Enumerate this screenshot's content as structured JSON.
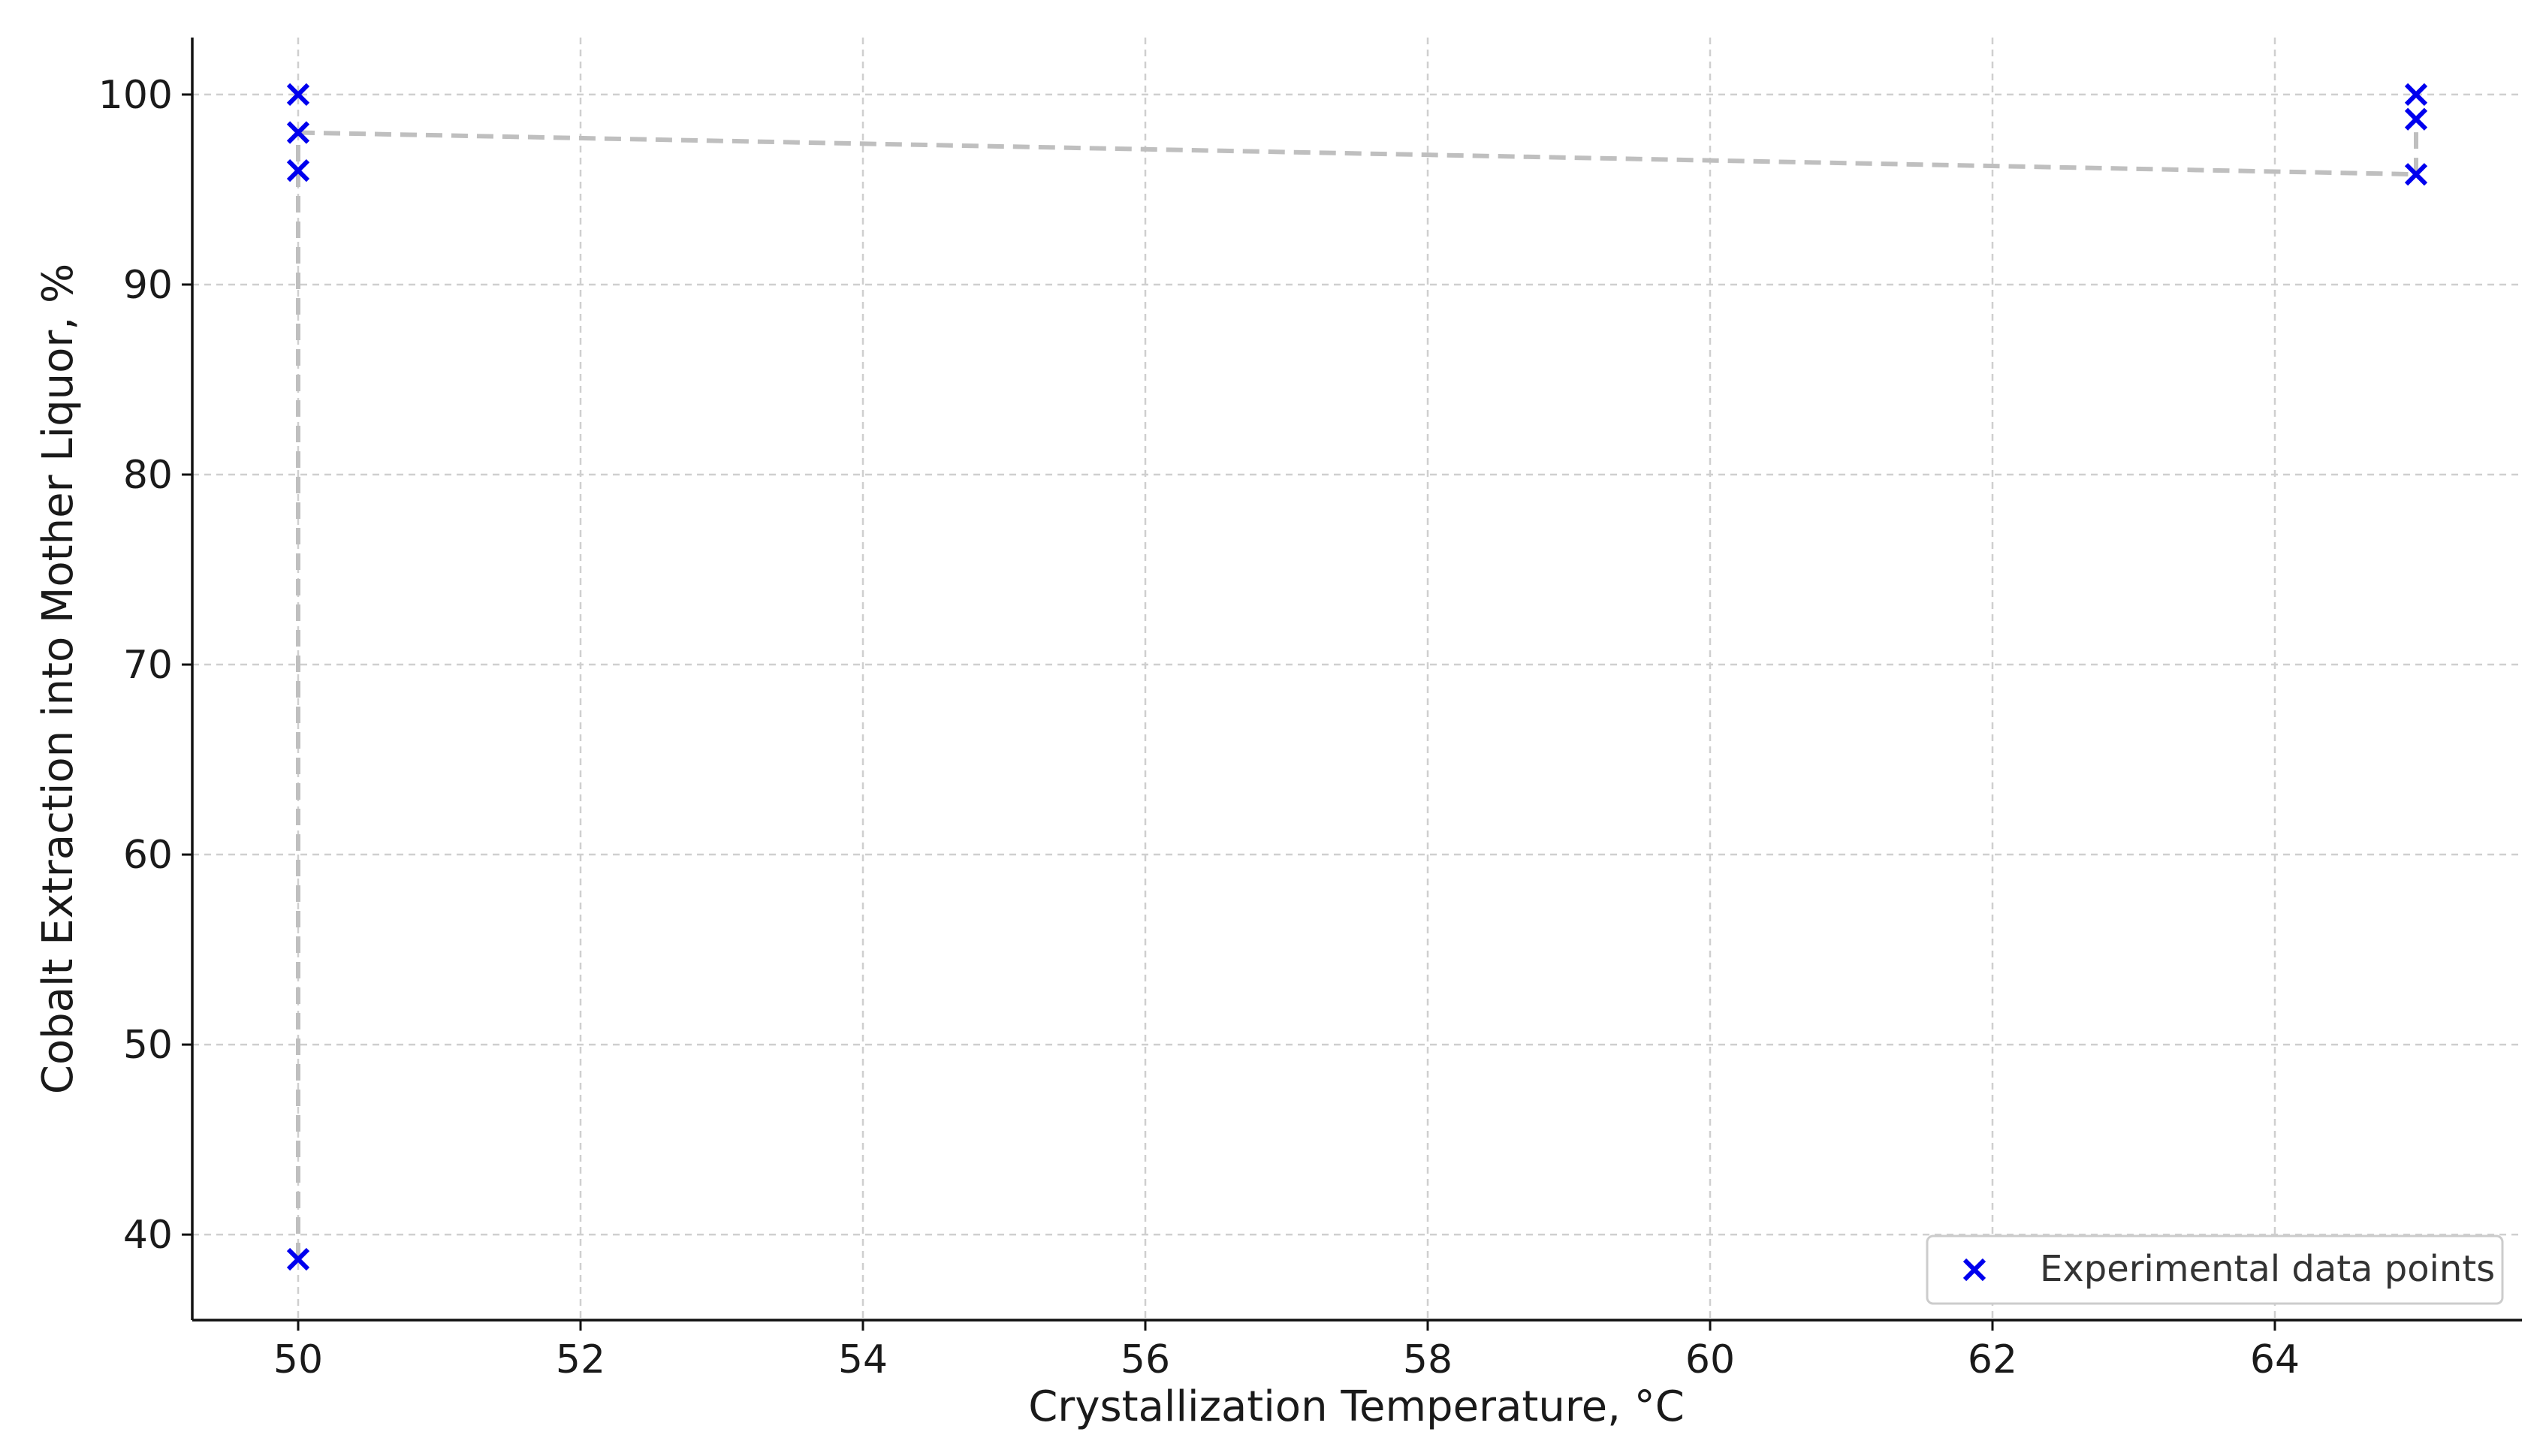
{
  "chart_data": {
    "type": "scatter",
    "title": "",
    "xlabel": "Crystallization Temperature, °C",
    "ylabel": "Cobalt Extraction into Mother Liquor, %",
    "xlim": [
      49.25,
      65.75
    ],
    "ylim": [
      35.5,
      103
    ],
    "x_ticks": [
      50,
      52,
      54,
      56,
      58,
      60,
      62,
      64
    ],
    "y_ticks": [
      40,
      50,
      60,
      70,
      80,
      90,
      100
    ],
    "grid": true,
    "legend_position": "lower-right",
    "series": [
      {
        "name": "Experimental data points",
        "marker": "x",
        "color": "#0000ee",
        "points": [
          {
            "x": 50,
            "y": 100
          },
          {
            "x": 50,
            "y": 98
          },
          {
            "x": 50,
            "y": 96
          },
          {
            "x": 50,
            "y": 38.7
          },
          {
            "x": 65,
            "y": 100
          },
          {
            "x": 65,
            "y": 98.7
          },
          {
            "x": 65,
            "y": 95.8
          }
        ]
      }
    ],
    "connector_lines": [
      {
        "style": "dashed",
        "color": "#bfbfbf",
        "points": [
          {
            "x": 50,
            "y": 38.7
          },
          {
            "x": 50,
            "y": 98
          }
        ]
      },
      {
        "style": "dashed",
        "color": "#bfbfbf",
        "points": [
          {
            "x": 50,
            "y": 98
          },
          {
            "x": 65,
            "y": 95.8
          }
        ]
      },
      {
        "style": "dashed",
        "color": "#bfbfbf",
        "points": [
          {
            "x": 65,
            "y": 95.8
          },
          {
            "x": 65,
            "y": 98.7
          }
        ]
      }
    ]
  }
}
